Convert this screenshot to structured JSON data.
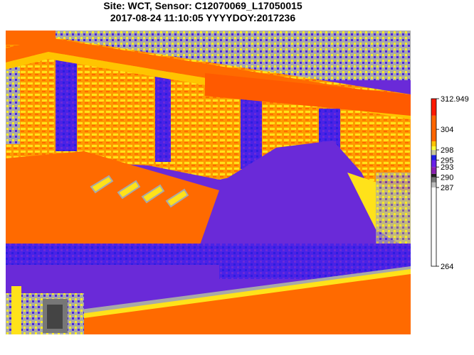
{
  "title": {
    "line1": "Site: WCT, Sensor: C12070069_L17050015",
    "line2": "2017-08-24 11:10:05 YYYYDOY:2017236"
  },
  "image": {
    "description_icon": "thermal-image-icon"
  },
  "colorbar": {
    "min": 264,
    "max": 312.949,
    "ticks": [
      "312.949",
      "304",
      "298",
      "295",
      "293",
      "290",
      "287",
      "264"
    ],
    "tick_values": [
      312.949,
      304,
      298,
      295,
      293,
      290,
      287,
      264
    ],
    "segments": [
      {
        "from": 264,
        "to": 287,
        "color": "#ffffff"
      },
      {
        "from": 287,
        "to": 288.5,
        "color": "#bdbdbd"
      },
      {
        "from": 288.5,
        "to": 290,
        "color": "#777777"
      },
      {
        "from": 290,
        "to": 291,
        "color": "#222222"
      },
      {
        "from": 291,
        "to": 293,
        "color": "#8a1fb0"
      },
      {
        "from": 293,
        "to": 295,
        "color": "#6a20e8"
      },
      {
        "from": 295,
        "to": 296.5,
        "color": "#1e1ee6"
      },
      {
        "from": 296.5,
        "to": 298,
        "color": "#c8c89a"
      },
      {
        "from": 298,
        "to": 299,
        "color": "#ffff33"
      },
      {
        "from": 299,
        "to": 300.5,
        "color": "#ffc400"
      },
      {
        "from": 300.5,
        "to": 308,
        "color": "#ff6600"
      },
      {
        "from": 308,
        "to": 312.949,
        "color": "#ff1a00"
      }
    ]
  },
  "colors": {
    "hot": "#ff6a00",
    "orange": "#ff8a00",
    "yellow": "#ffee22",
    "gray": "#a0a0a0",
    "blue": "#4422ee",
    "purple": "#6a2ad8",
    "red": "#ff2200"
  }
}
